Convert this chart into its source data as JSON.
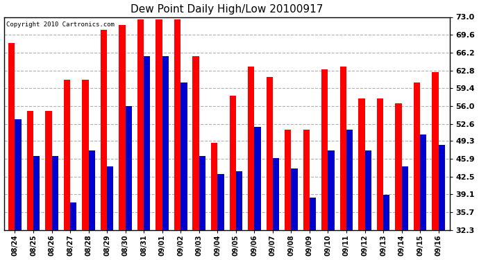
{
  "title": "Dew Point Daily High/Low 20100917",
  "copyright": "Copyright 2010 Cartronics.com",
  "labels": [
    "08/24",
    "08/25",
    "08/26",
    "08/27",
    "08/28",
    "08/29",
    "08/30",
    "08/31",
    "09/01",
    "09/02",
    "09/03",
    "09/04",
    "09/05",
    "09/06",
    "09/07",
    "09/08",
    "09/09",
    "09/10",
    "09/11",
    "09/12",
    "09/13",
    "09/14",
    "09/15",
    "09/16"
  ],
  "high": [
    68.0,
    55.0,
    55.0,
    61.0,
    61.0,
    70.5,
    71.5,
    72.5,
    72.5,
    72.5,
    65.5,
    49.0,
    58.0,
    63.5,
    61.5,
    51.5,
    51.5,
    63.0,
    63.5,
    57.5,
    57.5,
    56.5,
    60.5,
    62.5
  ],
  "low": [
    53.5,
    46.5,
    46.5,
    37.5,
    47.5,
    44.5,
    56.0,
    65.5,
    65.5,
    60.5,
    46.5,
    43.0,
    43.5,
    52.0,
    46.0,
    44.0,
    38.5,
    47.5,
    51.5,
    47.5,
    39.0,
    44.5,
    50.5,
    48.5
  ],
  "yticks": [
    32.3,
    35.7,
    39.1,
    42.5,
    45.9,
    49.3,
    52.6,
    56.0,
    59.4,
    62.8,
    66.2,
    69.6,
    73.0
  ],
  "ymin": 32.3,
  "ymax": 73.0,
  "high_color": "#ff0000",
  "low_color": "#0000cc",
  "bg_color": "#ffffff",
  "grid_color": "#b0b0b0",
  "bar_width": 0.35
}
